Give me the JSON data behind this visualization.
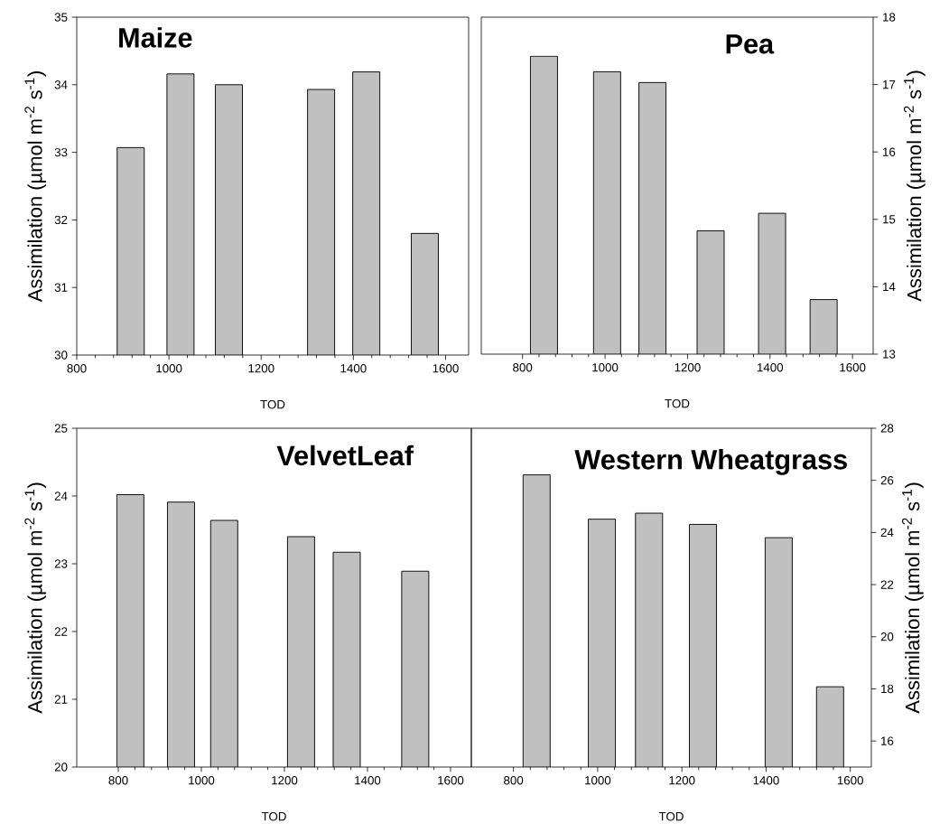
{
  "chart_data": [
    {
      "type": "bar",
      "title": "Maize",
      "xlabel": "TOD",
      "ylabel": "Assimilation (µmol m$^{-2}$ s$^{-1}$)",
      "x": [
        917,
        1025,
        1130,
        1330,
        1428,
        1555
      ],
      "values": [
        33.07,
        34.16,
        34.0,
        33.93,
        34.19,
        31.8
      ],
      "color": "#c0c0c0",
      "xlim": [
        800,
        1650
      ],
      "ylim": [
        30,
        35
      ],
      "xticks": [
        800,
        1000,
        1200,
        1400,
        1600
      ],
      "yticks": [
        30,
        31,
        32,
        33,
        34,
        35
      ]
    },
    {
      "type": "bar",
      "title": "Pea",
      "xlabel": "TOD",
      "ylabel": "Assimilation (µmol m$^{-2}$ s$^{-1}$)",
      "x": [
        852,
        1005,
        1115,
        1256,
        1405,
        1530
      ],
      "values": [
        17.42,
        17.19,
        17.03,
        14.83,
        15.09,
        13.81
      ],
      "color": "#c0c0c0",
      "xlim": [
        700,
        1650
      ],
      "ylim": [
        13,
        18
      ],
      "xticks": [
        800,
        1000,
        1200,
        1400,
        1600
      ],
      "yticks": [
        13,
        14,
        15,
        16,
        17,
        18
      ]
    },
    {
      "type": "bar",
      "title": "VelvetLeaf",
      "xlabel": "TOD",
      "ylabel": "Assimilation (µmol m$^{-2}$ s$^{-1}$)",
      "x": [
        829,
        951,
        1055,
        1240,
        1350,
        1515
      ],
      "values": [
        24.02,
        23.91,
        23.64,
        23.4,
        23.17,
        22.89
      ],
      "color": "#c0c0c0",
      "xlim": [
        700,
        1650
      ],
      "ylim": [
        20,
        25
      ],
      "xticks": [
        800,
        1000,
        1200,
        1400,
        1600
      ],
      "yticks": [
        20,
        21,
        22,
        23,
        24,
        25
      ]
    },
    {
      "type": "bar",
      "title": "Western Wheatgrass",
      "xlabel": "TOD",
      "ylabel": "Assimilation (µmol m$^{-2}$ s$^{-1}$)",
      "x": [
        855,
        1010,
        1122,
        1250,
        1430,
        1552
      ],
      "values": [
        26.21,
        24.51,
        24.74,
        24.31,
        23.8,
        18.08
      ],
      "color": "#c0c0c0",
      "xlim": [
        700,
        1650
      ],
      "ylim": [
        15,
        28
      ],
      "xticks": [
        800,
        1000,
        1200,
        1400,
        1600
      ],
      "yticks": [
        16,
        18,
        20,
        22,
        24,
        26,
        28
      ]
    }
  ]
}
